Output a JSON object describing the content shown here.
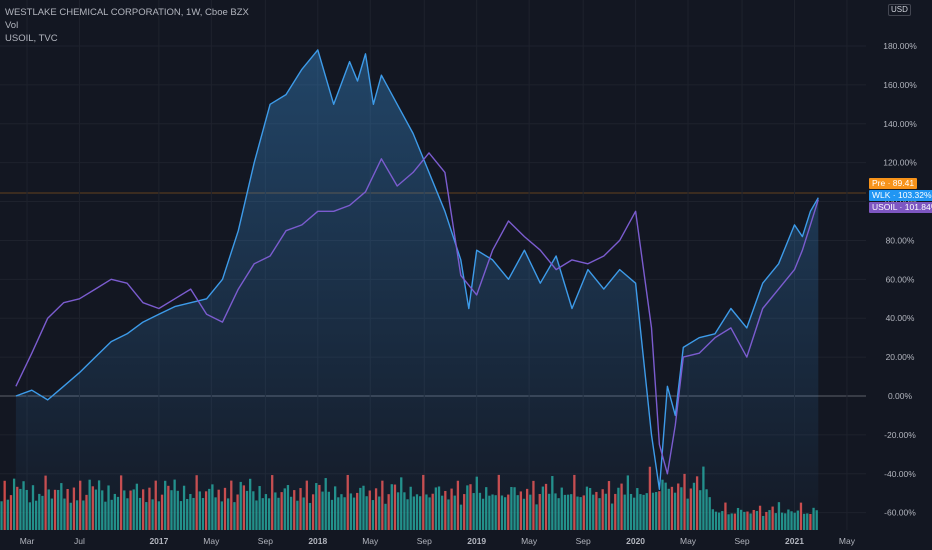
{
  "legend": {
    "main": "WESTLAKE CHEMICAL CORPORATION, 1W, Cboe BZX",
    "vol": "Vol",
    "compare": "USOIL, TVC"
  },
  "currency": "USD",
  "tags": {
    "pre": "Pre · 89.41",
    "wlk": "WLK · 103.32%",
    "usoil": "USOIL · 101.84%"
  },
  "colors": {
    "background": "#131722",
    "wlk": "#3d9be9",
    "usoil": "#7b5ccf",
    "vol_up": "#26a69a",
    "vol_down": "#ef5350",
    "pre": "#f7931a"
  },
  "chart_data": {
    "type": "line",
    "ylim": [
      -65,
      200
    ],
    "y_unit": "%",
    "y_ticks": [
      "180.00%",
      "160.00%",
      "140.00%",
      "120.00%",
      "100.00%",
      "80.00%",
      "60.00%",
      "40.00%",
      "20.00%",
      "0.00%",
      "-20.00%",
      "-40.00%",
      "-60.00%"
    ],
    "x_ticks": [
      "Mar",
      "Jul",
      "2017",
      "May",
      "Sep",
      "2018",
      "May",
      "Sep",
      "2019",
      "May",
      "Sep",
      "2020",
      "May",
      "Sep",
      "2021",
      "May"
    ],
    "x_tick_times": [
      2016.17,
      2016.5,
      2017.0,
      2017.33,
      2017.67,
      2018.0,
      2018.33,
      2018.67,
      2019.0,
      2019.33,
      2019.67,
      2020.0,
      2020.33,
      2020.67,
      2021.0,
      2021.33
    ],
    "series": [
      {
        "name": "WLK",
        "x": [
          2016.1,
          2016.2,
          2016.3,
          2016.4,
          2016.5,
          2016.6,
          2016.7,
          2016.8,
          2016.9,
          2017.0,
          2017.1,
          2017.2,
          2017.3,
          2017.4,
          2017.5,
          2017.6,
          2017.7,
          2017.8,
          2017.9,
          2018.0,
          2018.1,
          2018.2,
          2018.25,
          2018.3,
          2018.35,
          2018.4,
          2018.5,
          2018.6,
          2018.7,
          2018.8,
          2018.9,
          2018.95,
          2019.0,
          2019.1,
          2019.2,
          2019.3,
          2019.4,
          2019.5,
          2019.6,
          2019.7,
          2019.8,
          2019.9,
          2020.0,
          2020.1,
          2020.15,
          2020.2,
          2020.25,
          2020.3,
          2020.4,
          2020.5,
          2020.6,
          2020.7,
          2020.8,
          2020.9,
          2021.0,
          2021.05,
          2021.1,
          2021.15
        ],
        "values": [
          0,
          3,
          -2,
          5,
          12,
          20,
          28,
          32,
          38,
          42,
          46,
          48,
          50,
          60,
          85,
          120,
          150,
          155,
          168,
          178,
          150,
          172,
          162,
          176,
          150,
          165,
          150,
          135,
          115,
          95,
          70,
          45,
          75,
          70,
          60,
          75,
          58,
          72,
          45,
          65,
          55,
          65,
          58,
          -20,
          -48,
          5,
          -10,
          25,
          30,
          32,
          45,
          35,
          58,
          68,
          88,
          82,
          95,
          102
        ]
      },
      {
        "name": "USOIL",
        "x": [
          2016.1,
          2016.2,
          2016.3,
          2016.4,
          2016.5,
          2016.6,
          2016.7,
          2016.8,
          2016.9,
          2017.0,
          2017.1,
          2017.2,
          2017.3,
          2017.4,
          2017.5,
          2017.6,
          2017.7,
          2017.8,
          2017.9,
          2018.0,
          2018.1,
          2018.2,
          2018.3,
          2018.4,
          2018.5,
          2018.6,
          2018.7,
          2018.8,
          2018.9,
          2019.0,
          2019.1,
          2019.2,
          2019.3,
          2019.4,
          2019.5,
          2019.6,
          2019.7,
          2019.8,
          2019.9,
          2020.0,
          2020.1,
          2020.15,
          2020.2,
          2020.25,
          2020.3,
          2020.4,
          2020.5,
          2020.6,
          2020.7,
          2020.8,
          2020.9,
          2021.0,
          2021.05,
          2021.1,
          2021.15
        ],
        "values": [
          5,
          22,
          40,
          48,
          50,
          55,
          60,
          58,
          48,
          45,
          50,
          55,
          42,
          38,
          55,
          68,
          72,
          85,
          88,
          95,
          95,
          98,
          105,
          122,
          108,
          115,
          125,
          115,
          62,
          52,
          75,
          90,
          82,
          75,
          65,
          70,
          68,
          72,
          80,
          95,
          35,
          -25,
          -40,
          -15,
          20,
          22,
          30,
          35,
          20,
          45,
          55,
          65,
          75,
          88,
          101
        ]
      }
    ],
    "volume": {
      "colors": [
        "up",
        "down",
        "up",
        "up",
        "up",
        "down",
        "up",
        "up",
        "up",
        "down",
        "up",
        "up",
        "up",
        "down",
        "up",
        "down",
        "up",
        "up",
        "up",
        "down",
        "up",
        "up",
        "down",
        "up"
      ],
      "levels": [
        0.55,
        0.62,
        0.58,
        0.45,
        0.7,
        0.5,
        0.48,
        0.52,
        0.45,
        0.6,
        0.42,
        0.5,
        0.38,
        0.55,
        0.48,
        0.4,
        0.35,
        0.45,
        0.5,
        0.6,
        0.42,
        0.38,
        0.48,
        0.52
      ]
    }
  }
}
